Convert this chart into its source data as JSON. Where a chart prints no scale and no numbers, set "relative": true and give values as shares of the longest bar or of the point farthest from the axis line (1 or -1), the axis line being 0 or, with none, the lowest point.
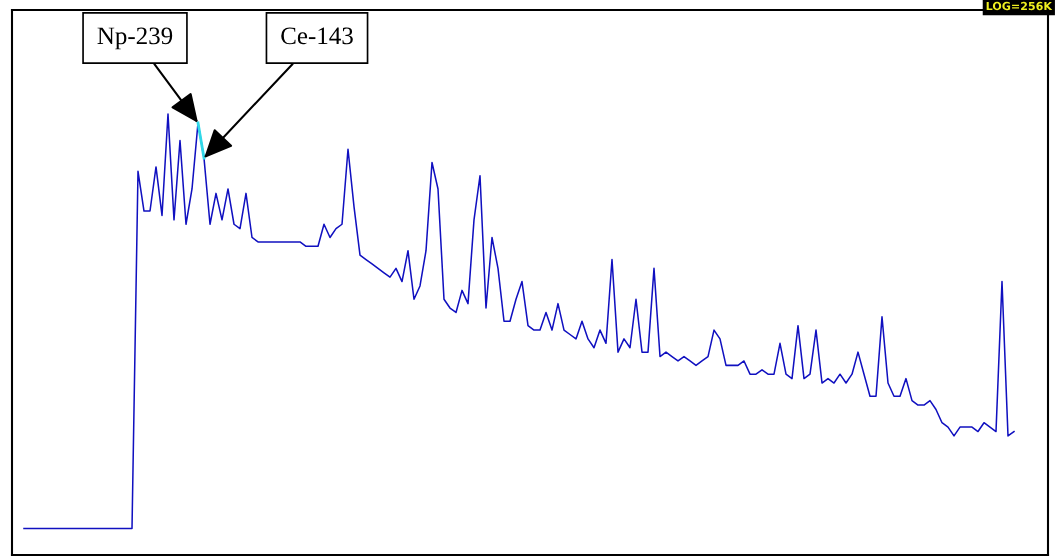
{
  "chart_data": {
    "type": "line",
    "relative": true,
    "categories": [
      null,
      null,
      null,
      null,
      null,
      null,
      null,
      null,
      null,
      null,
      null,
      null,
      null,
      null,
      null,
      null,
      null,
      null,
      null,
      null,
      null,
      null,
      null,
      null,
      null,
      null,
      null,
      null,
      null,
      null,
      null,
      null,
      null,
      null,
      null,
      null,
      null,
      null,
      null,
      null,
      null,
      null,
      null,
      null,
      null,
      null,
      null,
      null,
      null,
      null,
      null,
      null,
      null,
      null,
      null,
      null,
      null,
      null,
      null,
      null,
      null,
      null,
      null,
      null,
      null,
      null,
      null,
      null,
      null,
      null,
      null,
      null,
      null,
      null,
      null,
      null,
      null,
      null,
      null,
      null,
      null,
      null,
      null,
      null,
      null,
      null,
      null,
      null,
      null,
      null,
      null,
      null,
      null,
      null,
      null,
      null,
      null,
      null,
      null,
      null,
      null,
      null,
      null,
      null,
      null,
      null,
      null,
      null,
      null,
      null,
      null,
      null,
      null,
      null,
      null,
      null,
      null,
      null,
      null,
      null,
      null,
      null,
      null,
      null,
      null,
      null,
      null,
      null,
      null,
      null,
      null,
      null,
      null,
      null,
      null,
      null,
      null,
      null,
      null,
      null,
      null,
      null,
      null,
      null,
      null,
      null,
      null,
      null,
      null,
      null,
      null,
      null,
      null,
      null,
      null,
      null,
      null,
      null,
      null,
      null,
      null,
      null,
      null,
      null,
      null,
      null
    ],
    "series": [
      {
        "color": "#1010c0",
        "values": [
          0.06,
          0.06,
          0.06,
          0.06,
          0.06,
          0.06,
          0.06,
          0.06,
          0.06,
          0.06,
          0.06,
          0.06,
          0.06,
          0.06,
          0.06,
          0.06,
          0.06,
          0.06,
          0.06,
          0.87,
          0.78,
          0.78,
          0.88,
          0.77,
          1.0,
          0.76,
          0.94,
          0.75,
          0.83,
          0.98,
          0.9,
          0.75,
          0.82,
          0.76,
          0.83,
          0.75,
          0.74,
          0.82,
          0.72,
          0.71,
          0.71,
          0.71,
          0.71,
          0.71,
          0.71,
          0.71,
          0.71,
          0.7,
          0.7,
          0.7,
          0.75,
          0.72,
          0.74,
          0.75,
          0.92,
          0.79,
          0.68,
          0.67,
          0.66,
          0.65,
          0.64,
          0.63,
          0.65,
          0.62,
          0.69,
          0.58,
          0.61,
          0.69,
          0.89,
          0.83,
          0.58,
          0.56,
          0.55,
          0.6,
          0.57,
          0.76,
          0.86,
          0.56,
          0.72,
          0.65,
          0.53,
          0.53,
          0.58,
          0.62,
          0.52,
          0.51,
          0.51,
          0.55,
          0.51,
          0.57,
          0.51,
          0.5,
          0.49,
          0.53,
          0.49,
          0.47,
          0.51,
          0.48,
          0.67,
          0.46,
          0.49,
          0.47,
          0.58,
          0.46,
          0.46,
          0.65,
          0.45,
          0.46,
          0.45,
          0.44,
          0.45,
          0.44,
          0.43,
          0.44,
          0.45,
          0.51,
          0.49,
          0.43,
          0.43,
          0.43,
          0.44,
          0.41,
          0.41,
          0.42,
          0.41,
          0.41,
          0.48,
          0.41,
          0.4,
          0.52,
          0.4,
          0.41,
          0.51,
          0.39,
          0.4,
          0.39,
          0.41,
          0.39,
          0.41,
          0.46,
          0.41,
          0.36,
          0.36,
          0.54,
          0.39,
          0.36,
          0.36,
          0.4,
          0.35,
          0.34,
          0.34,
          0.35,
          0.33,
          0.3,
          0.29,
          0.27,
          0.29,
          0.29,
          0.29,
          0.28,
          0.3,
          0.29,
          0.28,
          0.62,
          0.27,
          0.28
        ]
      },
      {
        "color": "#30d8e8",
        "values": [
          null,
          null,
          null,
          null,
          null,
          null,
          null,
          null,
          null,
          null,
          null,
          null,
          null,
          null,
          null,
          null,
          null,
          null,
          null,
          null,
          null,
          null,
          null,
          null,
          null,
          null,
          null,
          null,
          null,
          0.98,
          0.9,
          null,
          null,
          null,
          null,
          null,
          null,
          null,
          null,
          null,
          null,
          null,
          null,
          null,
          null,
          null,
          null,
          null,
          null,
          null,
          null,
          null,
          null,
          null,
          null,
          null,
          null,
          null,
          null,
          null,
          null,
          null,
          null,
          null,
          null,
          null,
          null,
          null,
          null,
          null,
          null,
          null,
          null,
          null,
          null,
          null,
          null,
          null,
          null,
          null,
          null,
          null,
          null,
          null,
          null,
          null,
          null,
          null,
          null,
          null,
          null,
          null,
          null,
          null,
          null,
          null,
          null,
          null,
          null,
          null,
          null,
          null,
          null,
          null,
          null,
          null,
          null,
          null,
          null,
          null,
          null,
          null,
          null,
          null,
          null,
          null,
          null,
          null,
          null,
          null,
          null,
          null,
          null,
          null,
          null,
          null,
          null,
          null,
          null,
          null,
          null,
          null,
          null,
          null,
          null,
          null,
          null,
          null,
          null,
          null,
          null,
          null,
          null,
          null,
          null,
          null,
          null,
          null,
          null,
          null,
          null,
          null,
          null,
          null,
          null,
          null,
          null,
          null,
          null,
          null,
          null,
          null,
          null,
          null,
          null,
          null
        ]
      }
    ],
    "annotations": [
      "Np-239",
      "Ce-143",
      "LOG=256K"
    ]
  }
}
